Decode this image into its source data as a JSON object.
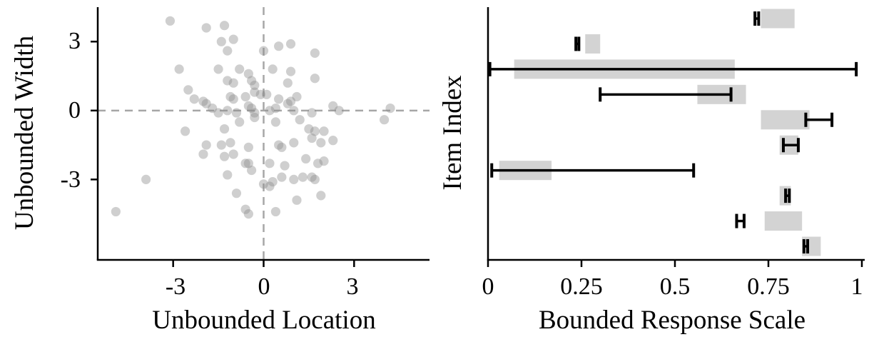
{
  "chart_data": [
    {
      "type": "scatter",
      "title": "",
      "xlabel": "Unbounded Location",
      "ylabel": "Unbounded Width",
      "xlim": [
        -5.5,
        5.5
      ],
      "ylim": [
        -6.5,
        4.5
      ],
      "xticks": [
        -3,
        0,
        3
      ],
      "yticks": [
        3,
        0,
        -3
      ],
      "xtick_labels": [
        "-3",
        "0",
        "3"
      ],
      "ytick_labels": [
        "3",
        "0",
        "-3"
      ],
      "reference_lines": {
        "x": 0,
        "y": 0,
        "style": "dashed"
      },
      "grid": false,
      "point_color": "#8c8c8c",
      "point_opacity": 0.42,
      "points": [
        [
          -3.1,
          3.9
        ],
        [
          -1.9,
          3.6
        ],
        [
          -1.3,
          3.7
        ],
        [
          -1.4,
          3.0
        ],
        [
          -1.0,
          3.1
        ],
        [
          -1.2,
          2.6
        ],
        [
          0.0,
          2.6
        ],
        [
          0.5,
          2.8
        ],
        [
          0.9,
          2.9
        ],
        [
          1.7,
          2.5
        ],
        [
          -2.8,
          1.8
        ],
        [
          -1.5,
          1.8
        ],
        [
          -0.8,
          1.8
        ],
        [
          -0.5,
          1.6
        ],
        [
          0.3,
          1.8
        ],
        [
          0.9,
          1.7
        ],
        [
          -2.5,
          0.9
        ],
        [
          -1.2,
          1.3
        ],
        [
          -1.0,
          1.2
        ],
        [
          -0.4,
          1.3
        ],
        [
          -0.3,
          1.1
        ],
        [
          0.8,
          1.2
        ],
        [
          1.7,
          1.4
        ],
        [
          -2.3,
          0.5
        ],
        [
          -2.0,
          0.4
        ],
        [
          -1.9,
          0.3
        ],
        [
          -1.1,
          0.6
        ],
        [
          -1.0,
          0.5
        ],
        [
          -0.6,
          0.6
        ],
        [
          -0.3,
          0.8
        ],
        [
          -0.1,
          0.7
        ],
        [
          0.1,
          0.7
        ],
        [
          0.5,
          0.5
        ],
        [
          0.8,
          0.3
        ],
        [
          0.9,
          0.4
        ],
        [
          1.1,
          0.6
        ],
        [
          -1.7,
          0.1
        ],
        [
          -1.5,
          -0.1
        ],
        [
          -1.2,
          0.0
        ],
        [
          -0.9,
          -0.1
        ],
        [
          -0.5,
          0.2
        ],
        [
          -0.4,
          0.1
        ],
        [
          -0.3,
          -0.1
        ],
        [
          0.2,
          0.0
        ],
        [
          0.4,
          0.1
        ],
        [
          1.0,
          0.0
        ],
        [
          1.6,
          -0.1
        ],
        [
          2.3,
          0.2
        ],
        [
          2.5,
          0.0
        ],
        [
          4.2,
          0.1
        ],
        [
          4.0,
          -0.4
        ],
        [
          -1.3,
          -0.8
        ],
        [
          -0.8,
          -0.5
        ],
        [
          -0.3,
          -0.3
        ],
        [
          0.4,
          -0.5
        ],
        [
          1.2,
          -0.4
        ],
        [
          1.5,
          -0.8
        ],
        [
          1.7,
          -0.9
        ],
        [
          2.0,
          -0.9
        ],
        [
          2.3,
          -1.3
        ],
        [
          -2.6,
          -0.9
        ],
        [
          -1.9,
          -1.5
        ],
        [
          -1.4,
          -1.5
        ],
        [
          -1.1,
          -1.4
        ],
        [
          -0.5,
          -1.6
        ],
        [
          0.5,
          -1.5
        ],
        [
          0.6,
          -1.6
        ],
        [
          1.0,
          -1.4
        ],
        [
          1.6,
          -1.2
        ],
        [
          1.9,
          -1.4
        ],
        [
          -2.0,
          -1.9
        ],
        [
          -1.3,
          -2.0
        ],
        [
          -1.0,
          -1.9
        ],
        [
          -0.6,
          -2.3
        ],
        [
          -0.5,
          -2.3
        ],
        [
          0.2,
          -2.3
        ],
        [
          0.7,
          -2.4
        ],
        [
          1.4,
          -2.1
        ],
        [
          1.8,
          -2.3
        ],
        [
          2.0,
          -2.2
        ],
        [
          -3.9,
          -3.0
        ],
        [
          -1.2,
          -2.8
        ],
        [
          -0.4,
          -2.6
        ],
        [
          0.0,
          -3.2
        ],
        [
          0.3,
          -3.1
        ],
        [
          0.6,
          -2.9
        ],
        [
          1.0,
          -3.0
        ],
        [
          1.3,
          -2.9
        ],
        [
          1.6,
          -2.9
        ],
        [
          1.7,
          -3.0
        ],
        [
          -4.9,
          -4.4
        ],
        [
          -0.9,
          -3.6
        ],
        [
          -0.6,
          -4.3
        ],
        [
          -0.5,
          -4.5
        ],
        [
          0.4,
          -4.4
        ],
        [
          1.1,
          -3.9
        ],
        [
          1.9,
          -3.7
        ],
        [
          0.2,
          -3.3
        ]
      ]
    },
    {
      "type": "bar",
      "subtype": "interval",
      "title": "",
      "xlabel": "Bounded Response Scale",
      "ylabel": "Item Index",
      "xlim": [
        0,
        1
      ],
      "xticks": [
        0,
        0.25,
        0.5,
        0.75,
        1
      ],
      "xtick_labels": [
        "0",
        "0.25",
        "0.5",
        "0.75",
        "1"
      ],
      "grid": false,
      "box_color": "#d3d3d3",
      "interval_color": "#000000",
      "items": [
        {
          "box": [
            0.73,
            0.82
          ],
          "interval": [
            0.714,
            0.724
          ]
        },
        {
          "box": [
            0.26,
            0.3
          ],
          "interval": [
            0.235,
            0.243
          ]
        },
        {
          "box": [
            0.07,
            0.66
          ],
          "interval": [
            0.005,
            0.985
          ]
        },
        {
          "box": [
            0.56,
            0.69
          ],
          "interval": [
            0.3,
            0.65
          ]
        },
        {
          "box": [
            0.73,
            0.86
          ],
          "interval": [
            0.85,
            0.92
          ]
        },
        {
          "box": [
            0.78,
            0.83
          ],
          "interval": [
            0.79,
            0.83
          ]
        },
        {
          "box": [
            0.03,
            0.17
          ],
          "interval": [
            0.01,
            0.55
          ]
        },
        {
          "box": [
            0.78,
            0.81
          ],
          "interval": [
            0.796,
            0.806
          ]
        },
        {
          "box": [
            0.74,
            0.84
          ],
          "interval": [
            0.665,
            0.685
          ]
        },
        {
          "box": [
            0.84,
            0.89
          ],
          "interval": [
            0.845,
            0.855
          ]
        }
      ]
    }
  ]
}
